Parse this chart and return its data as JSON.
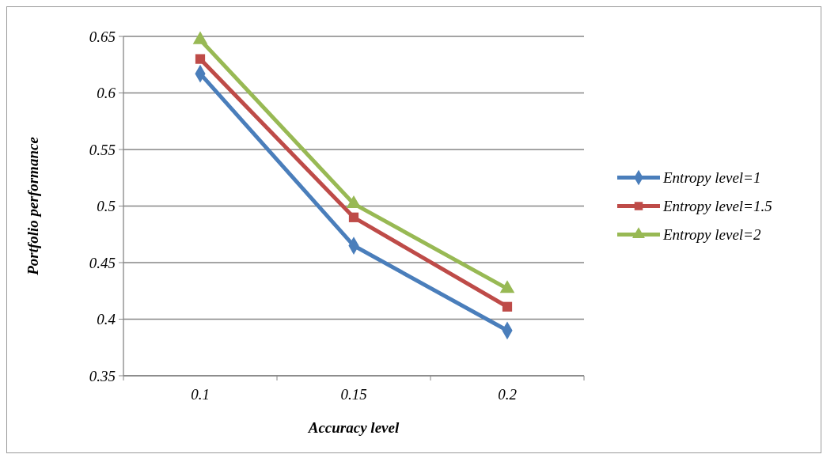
{
  "chart_data": {
    "type": "line",
    "xlabel": "Accuracy level",
    "ylabel": "Portfolio performance",
    "categories": [
      "0.1",
      "0.15",
      "0.2"
    ],
    "series": [
      {
        "name": "Entropy level=1",
        "color": "#4a7ebb",
        "marker": "diamond",
        "values": [
          0.617,
          0.465,
          0.39
        ]
      },
      {
        "name": "Entropy level=1.5",
        "color": "#be4b48",
        "marker": "square",
        "values": [
          0.63,
          0.49,
          0.411
        ]
      },
      {
        "name": "Entropy level=2",
        "color": "#98b954",
        "marker": "triangle",
        "values": [
          0.647,
          0.502,
          0.427
        ]
      }
    ],
    "ylim": [
      0.35,
      0.65
    ],
    "yticks": [
      0.35,
      0.4,
      0.45,
      0.5,
      0.55,
      0.6,
      0.65
    ],
    "grid": "y",
    "legend": "right"
  }
}
